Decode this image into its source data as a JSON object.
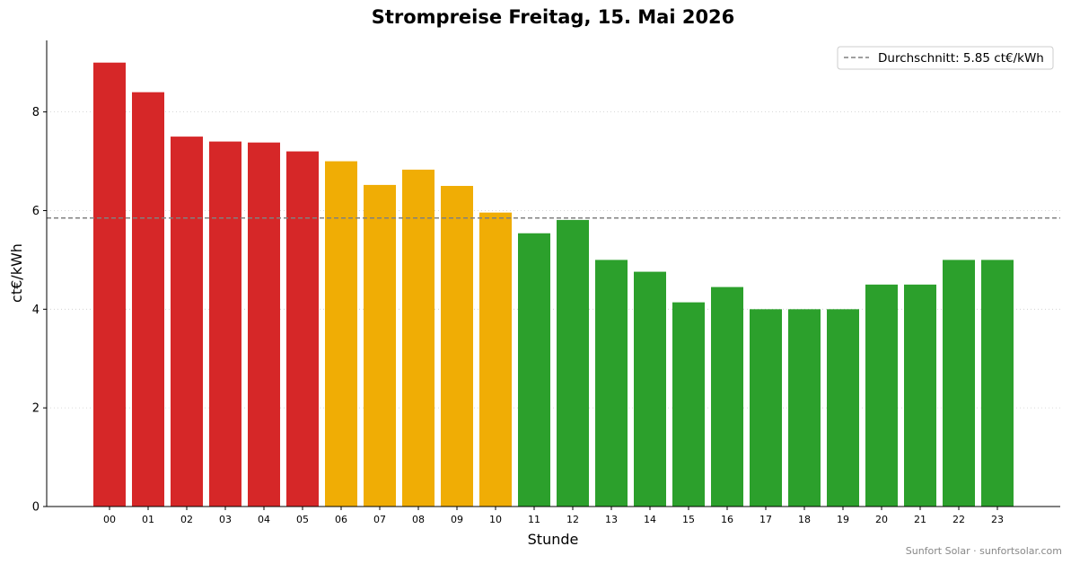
{
  "chart_data": {
    "type": "bar",
    "title": "Strompreise Freitag, 15. Mai 2026",
    "xlabel": "Stunde",
    "ylabel": "ct€/kWh",
    "categories": [
      "00",
      "01",
      "02",
      "03",
      "04",
      "05",
      "06",
      "07",
      "08",
      "09",
      "10",
      "11",
      "12",
      "13",
      "14",
      "15",
      "16",
      "17",
      "18",
      "19",
      "20",
      "21",
      "22",
      "23"
    ],
    "values": [
      9.0,
      8.4,
      7.5,
      7.4,
      7.38,
      7.2,
      7.0,
      6.52,
      6.83,
      6.5,
      5.96,
      5.54,
      5.81,
      5.0,
      4.76,
      4.14,
      4.45,
      4.0,
      4.0,
      4.0,
      4.5,
      4.5,
      5.0,
      5.0
    ],
    "bar_colors": [
      "#d62728",
      "#d62728",
      "#d62728",
      "#d62728",
      "#d62728",
      "#d62728",
      "#f0ad05",
      "#f0ad05",
      "#f0ad05",
      "#f0ad05",
      "#f0ad05",
      "#2ca02c",
      "#2ca02c",
      "#2ca02c",
      "#2ca02c",
      "#2ca02c",
      "#2ca02c",
      "#2ca02c",
      "#2ca02c",
      "#2ca02c",
      "#2ca02c",
      "#2ca02c",
      "#2ca02c",
      "#2ca02c"
    ],
    "ylim": [
      0,
      9.45
    ],
    "yticks": [
      0,
      2,
      4,
      6,
      8
    ],
    "average": 5.85,
    "average_color": "#808080",
    "legend": {
      "label": "Durchschnitt: 5.85 ct€/kWh",
      "placement": "top-right"
    },
    "grid": "horizontal-dotted"
  },
  "footer": {
    "credit": "Sunfort Solar · sunfortsolar.com"
  }
}
